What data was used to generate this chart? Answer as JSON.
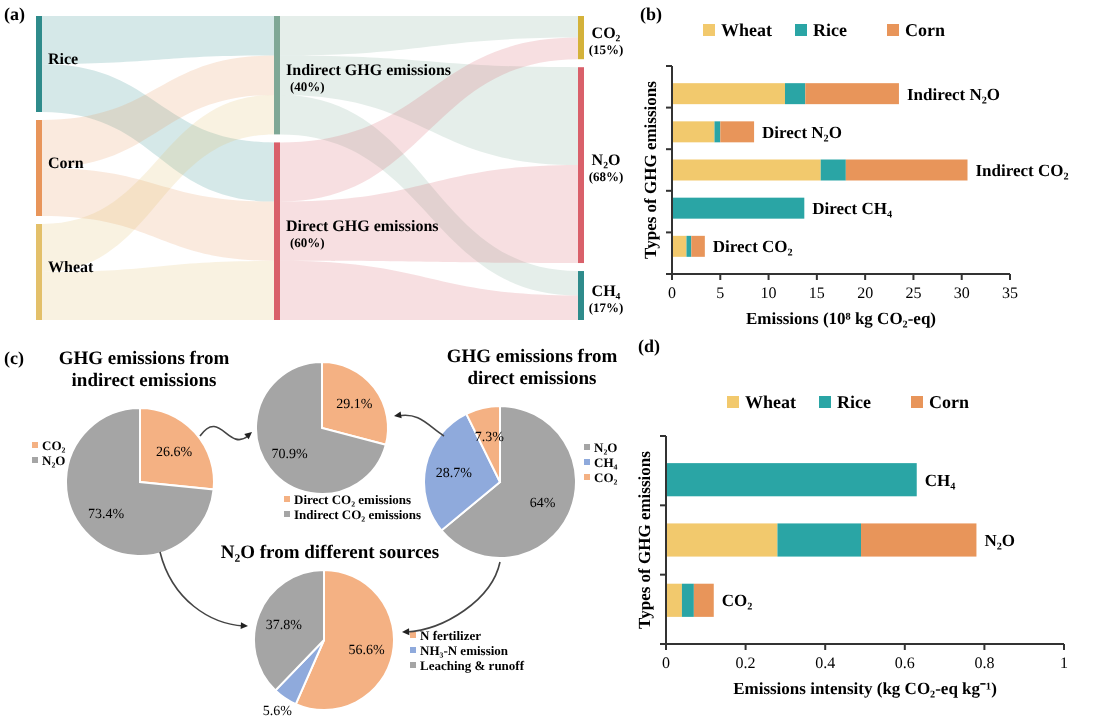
{
  "chart_data": [
    {
      "type": "other",
      "annotations": [
        "(a)"
      ],
      "categories": [
        "Rice",
        "Corn",
        "Wheat",
        "Indirect GHG emissions",
        "Direct GHG emissions",
        "CO₂",
        "N₂O",
        "CH₄"
      ],
      "values": [
        null,
        null,
        null,
        40,
        60,
        15,
        68,
        17
      ],
      "value_labels": [
        null,
        null,
        null,
        "(40%)",
        "(60%)",
        "(15%)",
        "(68%)",
        "(17%)"
      ],
      "colors": [
        "#2e8b8b",
        "#e8955a",
        "#e3c06a",
        "#7fa896",
        "#d9606a",
        "#d4b23a",
        "#d9606a",
        "#2e8b8b"
      ]
    },
    {
      "type": "bar",
      "orientation": "horizontal",
      "stacked": true,
      "annotations": [
        "(b)"
      ],
      "categories": [
        "Indirect N₂O",
        "Direct N₂O",
        "Indirect CO₂",
        "Direct CH₄",
        "Direct CO₂"
      ],
      "series": [
        {
          "name": "Wheat",
          "color": "#f2c96d",
          "values": [
            11.7,
            4.4,
            15.4,
            0,
            1.5
          ]
        },
        {
          "name": "Rice",
          "color": "#2aa5a5",
          "values": [
            2.1,
            0.6,
            2.6,
            13.7,
            0.5
          ]
        },
        {
          "name": "Corn",
          "color": "#e8955a",
          "values": [
            9.7,
            3.5,
            12.6,
            0,
            1.4
          ]
        }
      ],
      "xlim": [
        0,
        35
      ],
      "xticks": [
        0,
        5,
        10,
        15,
        20,
        25,
        30,
        35
      ],
      "xlabel": "Emissions (10⁸ kg CO₂-eq)",
      "ylabel": "Types of GHG emissions",
      "legend": "top"
    },
    {
      "type": "pie",
      "title": "GHG emissions from indirect emissions",
      "annotations": [
        "(c)"
      ],
      "categories": [
        "CO₂",
        "N₂O"
      ],
      "values": [
        26.6,
        73.4
      ],
      "value_labels": [
        "26.6%",
        "73.4%"
      ],
      "colors": [
        "#f4b183",
        "#a5a5a5"
      ],
      "legend": "left"
    },
    {
      "type": "pie",
      "categories": [
        "Direct CO₂ emissions",
        "Indirect CO₂ emissions"
      ],
      "values": [
        29.1,
        70.9
      ],
      "value_labels": [
        "29.1%",
        "70.9%"
      ],
      "colors": [
        "#f4b183",
        "#a5a5a5"
      ],
      "legend": "bottom"
    },
    {
      "type": "pie",
      "title": "GHG emissions from direct emissions",
      "categories": [
        "N₂O",
        "CH₄",
        "CO₂"
      ],
      "values": [
        64,
        28.7,
        7.3
      ],
      "value_labels": [
        "64%",
        "28.7%",
        "7.3%"
      ],
      "colors": [
        "#a5a5a5",
        "#8faadc",
        "#f4b183"
      ],
      "legend": "right"
    },
    {
      "type": "pie",
      "title": "N₂O from different sources",
      "categories": [
        "N fertilizer",
        "NH₃-N emission",
        "Leaching & runoff"
      ],
      "values": [
        56.6,
        5.6,
        37.8
      ],
      "value_labels": [
        "56.6%",
        "5.6%",
        "37.8%"
      ],
      "colors": [
        "#f4b183",
        "#8faadc",
        "#a5a5a5"
      ],
      "legend": "right"
    },
    {
      "type": "bar",
      "orientation": "horizontal",
      "stacked": true,
      "annotations": [
        "(d)"
      ],
      "categories": [
        "CH₄",
        "N₂O",
        "CO₂"
      ],
      "series": [
        {
          "name": "Wheat",
          "color": "#f2c96d",
          "values": [
            0,
            0.28,
            0.04
          ]
        },
        {
          "name": "Rice",
          "color": "#2aa5a5",
          "values": [
            0.63,
            0.21,
            0.03
          ]
        },
        {
          "name": "Corn",
          "color": "#e8955a",
          "values": [
            0,
            0.29,
            0.05
          ]
        }
      ],
      "xlim": [
        0,
        1
      ],
      "xticks": [
        0,
        0.2,
        0.4,
        0.6,
        0.8,
        1
      ],
      "xlabel": "Emissions intensity (kg CO₂-eq kg⁻¹)",
      "ylabel": "Types of GHG emissions",
      "legend": "top"
    }
  ]
}
